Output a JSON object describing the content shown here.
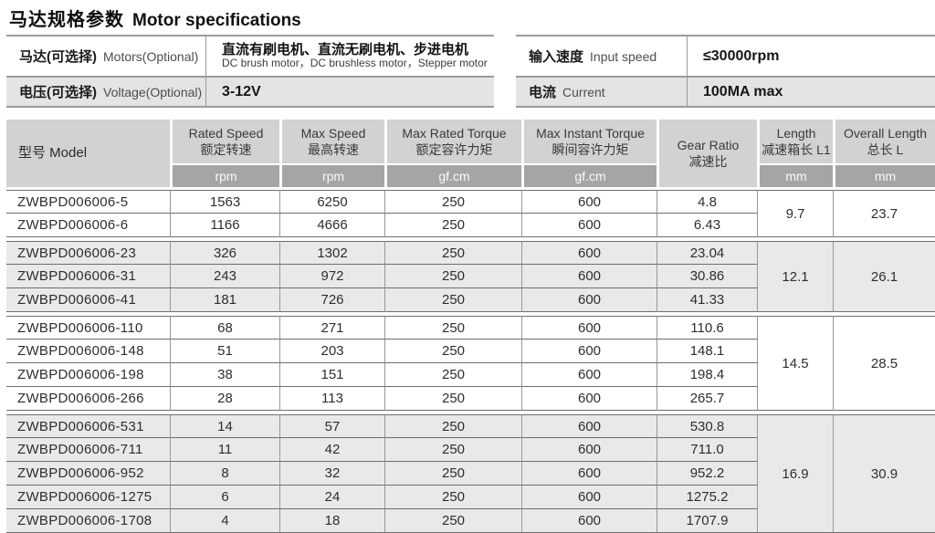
{
  "title": {
    "zh": "马达规格参数",
    "en": "Motor specifications"
  },
  "top_tables": {
    "motor": {
      "rows": [
        {
          "label_zh": "马达(可选择)",
          "label_en": "Motors(Optional)",
          "value_zh": "直流有刷电机、直流无刷电机、步进电机",
          "value_en": "DC brush motor，DC brushless motor，Stepper motor"
        },
        {
          "label_zh": "电压(可选择)",
          "label_en": "Voltage(Optional)",
          "value": "3-12V"
        }
      ]
    },
    "input": {
      "rows": [
        {
          "label_zh": "输入速度",
          "label_en": "Input speed",
          "value": "≤30000rpm"
        },
        {
          "label_zh": "电流",
          "label_en": "Current",
          "value": "100MA max"
        }
      ]
    }
  },
  "spec_table": {
    "model_header": "型号 Model",
    "columns": [
      {
        "en": "Rated Speed",
        "zh": "额定转速",
        "unit": "rpm"
      },
      {
        "en": "Max Speed",
        "zh": "最高转速",
        "unit": "rpm"
      },
      {
        "en": "Max Rated Torque",
        "zh": "额定容许力矩",
        "unit": "gf.cm"
      },
      {
        "en": "Max Instant Torque",
        "zh": "瞬间容许力矩",
        "unit": "gf.cm"
      },
      {
        "en": "Gear Ratio",
        "zh": "减速比",
        "unit": ""
      },
      {
        "en": "Length",
        "zh": "减速箱长 L1",
        "unit": "mm"
      },
      {
        "en": "Overall Length",
        "zh": "总长 L",
        "unit": "mm"
      }
    ],
    "groups": [
      {
        "length_l1": "9.7",
        "overall_length": "23.7",
        "rows": [
          {
            "model": "ZWBPD006006-5",
            "rated_speed": "1563",
            "max_speed": "6250",
            "max_rated_torque": "250",
            "max_instant_torque": "600",
            "gear_ratio": "4.8"
          },
          {
            "model": "ZWBPD006006-6",
            "rated_speed": "1166",
            "max_speed": "4666",
            "max_rated_torque": "250",
            "max_instant_torque": "600",
            "gear_ratio": "6.43"
          }
        ]
      },
      {
        "length_l1": "12.1",
        "overall_length": "26.1",
        "rows": [
          {
            "model": "ZWBPD006006-23",
            "rated_speed": "326",
            "max_speed": "1302",
            "max_rated_torque": "250",
            "max_instant_torque": "600",
            "gear_ratio": "23.04"
          },
          {
            "model": "ZWBPD006006-31",
            "rated_speed": "243",
            "max_speed": "972",
            "max_rated_torque": "250",
            "max_instant_torque": "600",
            "gear_ratio": "30.86"
          },
          {
            "model": "ZWBPD006006-41",
            "rated_speed": "181",
            "max_speed": "726",
            "max_rated_torque": "250",
            "max_instant_torque": "600",
            "gear_ratio": "41.33"
          }
        ]
      },
      {
        "length_l1": "14.5",
        "overall_length": "28.5",
        "rows": [
          {
            "model": "ZWBPD006006-110",
            "rated_speed": "68",
            "max_speed": "271",
            "max_rated_torque": "250",
            "max_instant_torque": "600",
            "gear_ratio": "110.6"
          },
          {
            "model": "ZWBPD006006-148",
            "rated_speed": "51",
            "max_speed": "203",
            "max_rated_torque": "250",
            "max_instant_torque": "600",
            "gear_ratio": "148.1"
          },
          {
            "model": "ZWBPD006006-198",
            "rated_speed": "38",
            "max_speed": "151",
            "max_rated_torque": "250",
            "max_instant_torque": "600",
            "gear_ratio": "198.4"
          },
          {
            "model": "ZWBPD006006-266",
            "rated_speed": "28",
            "max_speed": "113",
            "max_rated_torque": "250",
            "max_instant_torque": "600",
            "gear_ratio": "265.7"
          }
        ]
      },
      {
        "length_l1": "16.9",
        "overall_length": "30.9",
        "rows": [
          {
            "model": "ZWBPD006006-531",
            "rated_speed": "14",
            "max_speed": "57",
            "max_rated_torque": "250",
            "max_instant_torque": "600",
            "gear_ratio": "530.8"
          },
          {
            "model": "ZWBPD006006-711",
            "rated_speed": "11",
            "max_speed": "42",
            "max_rated_torque": "250",
            "max_instant_torque": "600",
            "gear_ratio": "711.0"
          },
          {
            "model": "ZWBPD006006-952",
            "rated_speed": "8",
            "max_speed": "32",
            "max_rated_torque": "250",
            "max_instant_torque": "600",
            "gear_ratio": "952.2"
          },
          {
            "model": "ZWBPD006006-1275",
            "rated_speed": "6",
            "max_speed": "24",
            "max_rated_torque": "250",
            "max_instant_torque": "600",
            "gear_ratio": "1275.2"
          },
          {
            "model": "ZWBPD006006-1708",
            "rated_speed": "4",
            "max_speed": "18",
            "max_rated_torque": "250",
            "max_instant_torque": "600",
            "gear_ratio": "1707.9"
          }
        ]
      }
    ]
  },
  "colors": {
    "header_bg": "#d2d2d2",
    "unit_band_bg": "#a5a5a5",
    "row_shade_bg": "#e9e9e9",
    "mini_shade_bg": "#e4e4e4",
    "row_line": "#6e6e6e"
  }
}
